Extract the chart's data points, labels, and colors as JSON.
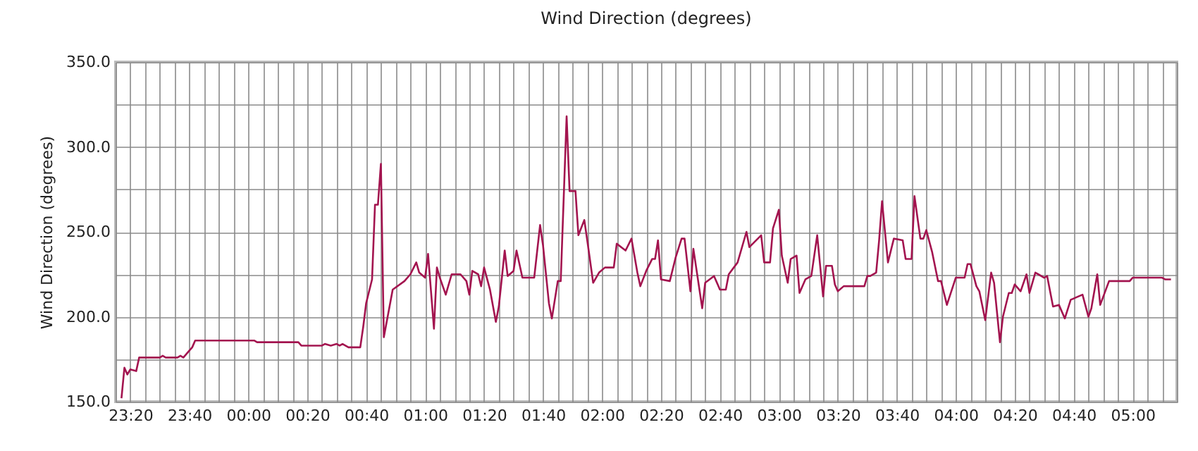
{
  "chart_data": {
    "type": "line",
    "title": "Wind Direction (degrees)",
    "ylabel": "Wind Direction (degrees)",
    "x": [
      "2000-01-01T23:17",
      "2000-01-01T23:18",
      "2000-01-01T23:19",
      "2000-01-01T23:20",
      "2000-01-01T23:22",
      "2000-01-01T23:23",
      "2000-01-01T23:30",
      "2000-01-01T23:31",
      "2000-01-01T23:32",
      "2000-01-01T23:36",
      "2000-01-01T23:37",
      "2000-01-01T23:38",
      "2000-01-01T23:40",
      "2000-01-01T23:41",
      "2000-01-01T23:42",
      "2000-01-02T00:02",
      "2000-01-02T00:03",
      "2000-01-02T00:17",
      "2000-01-02T00:18",
      "2000-01-02T00:25",
      "2000-01-02T00:26",
      "2000-01-02T00:28",
      "2000-01-02T00:30",
      "2000-01-02T00:31",
      "2000-01-02T00:32",
      "2000-01-02T00:34",
      "2000-01-02T00:36",
      "2000-01-02T00:38",
      "2000-01-02T00:39",
      "2000-01-02T00:40",
      "2000-01-02T00:42",
      "2000-01-02T00:43",
      "2000-01-02T00:44",
      "2000-01-02T00:45",
      "2000-01-02T00:46",
      "2000-01-02T00:49",
      "2000-01-02T00:53",
      "2000-01-02T00:55",
      "2000-01-02T00:57",
      "2000-01-02T00:58",
      "2000-01-02T01:00",
      "2000-01-02T01:01",
      "2000-01-02T01:03",
      "2000-01-02T01:04",
      "2000-01-02T01:05",
      "2000-01-02T01:07",
      "2000-01-02T01:09",
      "2000-01-02T01:12",
      "2000-01-02T01:14",
      "2000-01-02T01:15",
      "2000-01-02T01:16",
      "2000-01-02T01:18",
      "2000-01-02T01:19",
      "2000-01-02T01:20",
      "2000-01-02T01:22",
      "2000-01-02T01:24",
      "2000-01-02T01:25",
      "2000-01-02T01:27",
      "2000-01-02T01:28",
      "2000-01-02T01:30",
      "2000-01-02T01:31",
      "2000-01-02T01:33",
      "2000-01-02T01:37",
      "2000-01-02T01:39",
      "2000-01-02T01:40",
      "2000-01-02T01:42",
      "2000-01-02T01:43",
      "2000-01-02T01:45",
      "2000-01-02T01:46",
      "2000-01-02T01:48",
      "2000-01-02T01:49",
      "2000-01-02T01:51",
      "2000-01-02T01:52",
      "2000-01-02T01:54",
      "2000-01-02T01:55",
      "2000-01-02T01:57",
      "2000-01-02T01:59",
      "2000-01-02T02:01",
      "2000-01-02T02:04",
      "2000-01-02T02:05",
      "2000-01-02T02:08",
      "2000-01-02T02:10",
      "2000-01-02T02:12",
      "2000-01-02T02:13",
      "2000-01-02T02:15",
      "2000-01-02T02:17",
      "2000-01-02T02:18",
      "2000-01-02T02:19",
      "2000-01-02T02:20",
      "2000-01-02T02:23",
      "2000-01-02T02:25",
      "2000-01-02T02:27",
      "2000-01-02T02:28",
      "2000-01-02T02:30",
      "2000-01-02T02:31",
      "2000-01-02T02:34",
      "2000-01-02T02:35",
      "2000-01-02T02:38",
      "2000-01-02T02:40",
      "2000-01-02T02:42",
      "2000-01-02T02:43",
      "2000-01-02T02:46",
      "2000-01-02T02:49",
      "2000-01-02T02:50",
      "2000-01-02T02:54",
      "2000-01-02T02:55",
      "2000-01-02T02:57",
      "2000-01-02T02:58",
      "2000-01-02T03:00",
      "2000-01-02T03:01",
      "2000-01-02T03:03",
      "2000-01-02T03:04",
      "2000-01-02T03:06",
      "2000-01-02T03:07",
      "2000-01-02T03:09",
      "2000-01-02T03:11",
      "2000-01-02T03:13",
      "2000-01-02T03:15",
      "2000-01-02T03:16",
      "2000-01-02T03:18",
      "2000-01-02T03:19",
      "2000-01-02T03:20",
      "2000-01-02T03:22",
      "2000-01-02T03:29",
      "2000-01-02T03:30",
      "2000-01-02T03:31",
      "2000-01-02T03:33",
      "2000-01-02T03:34",
      "2000-01-02T03:35",
      "2000-01-02T03:37",
      "2000-01-02T03:39",
      "2000-01-02T03:42",
      "2000-01-02T03:43",
      "2000-01-02T03:45",
      "2000-01-02T03:46",
      "2000-01-02T03:48",
      "2000-01-02T03:49",
      "2000-01-02T03:50",
      "2000-01-02T03:52",
      "2000-01-02T03:54",
      "2000-01-02T03:55",
      "2000-01-02T03:57",
      "2000-01-02T04:00",
      "2000-01-02T04:03",
      "2000-01-02T04:04",
      "2000-01-02T04:05",
      "2000-01-02T04:07",
      "2000-01-02T04:08",
      "2000-01-02T04:10",
      "2000-01-02T04:12",
      "2000-01-02T04:13",
      "2000-01-02T04:15",
      "2000-01-02T04:16",
      "2000-01-02T04:18",
      "2000-01-02T04:19",
      "2000-01-02T04:20",
      "2000-01-02T04:22",
      "2000-01-02T04:24",
      "2000-01-02T04:25",
      "2000-01-02T04:27",
      "2000-01-02T04:28",
      "2000-01-02T04:30",
      "2000-01-02T04:31",
      "2000-01-02T04:33",
      "2000-01-02T04:35",
      "2000-01-02T04:37",
      "2000-01-02T04:39",
      "2000-01-02T04:43",
      "2000-01-02T04:45",
      "2000-01-02T04:46",
      "2000-01-02T04:48",
      "2000-01-02T04:49",
      "2000-01-02T04:52",
      "2000-01-02T04:59",
      "2000-01-02T05:00",
      "2000-01-02T05:10",
      "2000-01-02T05:11",
      "2000-01-02T05:13"
    ],
    "series": [
      {
        "color": "#a3144f",
        "values": [
          152,
          170,
          166,
          169,
          168,
          176,
          176,
          177,
          176,
          176,
          177,
          176,
          180,
          182,
          186,
          186,
          185,
          185,
          183,
          183,
          184,
          183,
          184,
          183,
          184,
          182,
          182,
          182,
          194,
          208,
          222,
          266,
          266,
          290,
          188,
          216,
          221,
          225,
          232,
          226,
          223,
          237,
          193,
          229,
          223,
          213,
          225,
          225,
          221,
          213,
          227,
          225,
          218,
          229,
          216,
          197,
          206,
          239,
          224,
          227,
          239,
          223,
          223,
          254,
          242,
          208,
          199,
          221,
          221,
          318,
          274,
          274,
          248,
          257,
          245,
          220,
          226,
          229,
          229,
          243,
          239,
          246,
          226,
          218,
          227,
          234,
          234,
          245,
          222,
          221,
          235,
          246,
          246,
          215,
          240,
          205,
          220,
          224,
          216,
          216,
          225,
          232,
          250,
          241,
          248,
          232,
          232,
          252,
          263,
          236,
          220,
          234,
          236,
          214,
          222,
          224,
          248,
          212,
          230,
          230,
          219,
          215,
          218,
          218,
          224,
          224,
          226,
          245,
          268,
          232,
          246,
          245,
          234,
          234,
          271,
          246,
          246,
          251,
          238,
          221,
          221,
          207,
          223,
          223,
          231,
          231,
          218,
          215,
          198,
          226,
          220,
          185,
          200,
          214,
          214,
          219,
          215,
          225,
          214,
          226,
          225,
          223,
          224,
          206,
          207,
          199,
          210,
          213,
          200,
          205,
          225,
          207,
          221,
          221,
          223,
          223,
          222,
          222
        ]
      }
    ],
    "xlim": [
      "2000-01-01T23:15",
      "2000-01-02T05:15"
    ],
    "xticks": [
      {
        "value": "2000-01-01T23:15",
        "label": null
      },
      {
        "value": "2000-01-01T23:20",
        "label": "23:20"
      },
      {
        "value": "2000-01-01T23:25",
        "label": null
      },
      {
        "value": "2000-01-01T23:30",
        "label": null
      },
      {
        "value": "2000-01-01T23:35",
        "label": null
      },
      {
        "value": "2000-01-01T23:40",
        "label": "23:40"
      },
      {
        "value": "2000-01-01T23:45",
        "label": null
      },
      {
        "value": "2000-01-01T23:50",
        "label": null
      },
      {
        "value": "2000-01-01T23:55",
        "label": null
      },
      {
        "value": "2000-01-02T00:00",
        "label": "00:00"
      },
      {
        "value": "2000-01-02T00:05",
        "label": null
      },
      {
        "value": "2000-01-02T00:10",
        "label": null
      },
      {
        "value": "2000-01-02T00:15",
        "label": null
      },
      {
        "value": "2000-01-02T00:20",
        "label": "00:20"
      },
      {
        "value": "2000-01-02T00:25",
        "label": null
      },
      {
        "value": "2000-01-02T00:30",
        "label": null
      },
      {
        "value": "2000-01-02T00:35",
        "label": null
      },
      {
        "value": "2000-01-02T00:40",
        "label": "00:40"
      },
      {
        "value": "2000-01-02T00:45",
        "label": null
      },
      {
        "value": "2000-01-02T00:50",
        "label": null
      },
      {
        "value": "2000-01-02T00:55",
        "label": null
      },
      {
        "value": "2000-01-02T01:00",
        "label": "01:00"
      },
      {
        "value": "2000-01-02T01:05",
        "label": null
      },
      {
        "value": "2000-01-02T01:10",
        "label": null
      },
      {
        "value": "2000-01-02T01:15",
        "label": null
      },
      {
        "value": "2000-01-02T01:20",
        "label": "01:20"
      },
      {
        "value": "2000-01-02T01:25",
        "label": null
      },
      {
        "value": "2000-01-02T01:30",
        "label": null
      },
      {
        "value": "2000-01-02T01:35",
        "label": null
      },
      {
        "value": "2000-01-02T01:40",
        "label": "01:40"
      },
      {
        "value": "2000-01-02T01:45",
        "label": null
      },
      {
        "value": "2000-01-02T01:50",
        "label": null
      },
      {
        "value": "2000-01-02T01:55",
        "label": null
      },
      {
        "value": "2000-01-02T02:00",
        "label": "02:00"
      },
      {
        "value": "2000-01-02T02:05",
        "label": null
      },
      {
        "value": "2000-01-02T02:10",
        "label": null
      },
      {
        "value": "2000-01-02T02:15",
        "label": null
      },
      {
        "value": "2000-01-02T02:20",
        "label": "02:20"
      },
      {
        "value": "2000-01-02T02:25",
        "label": null
      },
      {
        "value": "2000-01-02T02:30",
        "label": null
      },
      {
        "value": "2000-01-02T02:35",
        "label": null
      },
      {
        "value": "2000-01-02T02:40",
        "label": "02:40"
      },
      {
        "value": "2000-01-02T02:45",
        "label": null
      },
      {
        "value": "2000-01-02T02:50",
        "label": null
      },
      {
        "value": "2000-01-02T02:55",
        "label": null
      },
      {
        "value": "2000-01-02T03:00",
        "label": "03:00"
      },
      {
        "value": "2000-01-02T03:05",
        "label": null
      },
      {
        "value": "2000-01-02T03:10",
        "label": null
      },
      {
        "value": "2000-01-02T03:15",
        "label": null
      },
      {
        "value": "2000-01-02T03:20",
        "label": "03:20"
      },
      {
        "value": "2000-01-02T03:25",
        "label": null
      },
      {
        "value": "2000-01-02T03:30",
        "label": null
      },
      {
        "value": "2000-01-02T03:35",
        "label": null
      },
      {
        "value": "2000-01-02T03:40",
        "label": "03:40"
      },
      {
        "value": "2000-01-02T03:45",
        "label": null
      },
      {
        "value": "2000-01-02T03:50",
        "label": null
      },
      {
        "value": "2000-01-02T03:55",
        "label": null
      },
      {
        "value": "2000-01-02T04:00",
        "label": "04:00"
      },
      {
        "value": "2000-01-02T04:05",
        "label": null
      },
      {
        "value": "2000-01-02T04:10",
        "label": null
      },
      {
        "value": "2000-01-02T04:15",
        "label": null
      },
      {
        "value": "2000-01-02T04:20",
        "label": "04:20"
      },
      {
        "value": "2000-01-02T04:25",
        "label": null
      },
      {
        "value": "2000-01-02T04:30",
        "label": null
      },
      {
        "value": "2000-01-02T04:35",
        "label": null
      },
      {
        "value": "2000-01-02T04:40",
        "label": "04:40"
      },
      {
        "value": "2000-01-02T04:45",
        "label": null
      },
      {
        "value": "2000-01-02T04:50",
        "label": null
      },
      {
        "value": "2000-01-02T04:55",
        "label": null
      },
      {
        "value": "2000-01-02T05:00",
        "label": "05:00"
      },
      {
        "value": "2000-01-02T05:05",
        "label": null
      },
      {
        "value": "2000-01-02T05:10",
        "label": null
      },
      {
        "value": "2000-01-02T05:15",
        "label": null
      }
    ],
    "ylim": [
      150,
      350
    ],
    "yticks": [
      {
        "value": 150,
        "label": "150.0"
      },
      {
        "value": 175,
        "label": null
      },
      {
        "value": 200,
        "label": "200.0"
      },
      {
        "value": 225,
        "label": null
      },
      {
        "value": 250,
        "label": "250.0"
      },
      {
        "value": 275,
        "label": null
      },
      {
        "value": 300,
        "label": "300.0"
      },
      {
        "value": 325,
        "label": null
      },
      {
        "value": 350,
        "label": "350.0"
      }
    ],
    "grid": true,
    "marker": "none",
    "line_style": "solid"
  }
}
